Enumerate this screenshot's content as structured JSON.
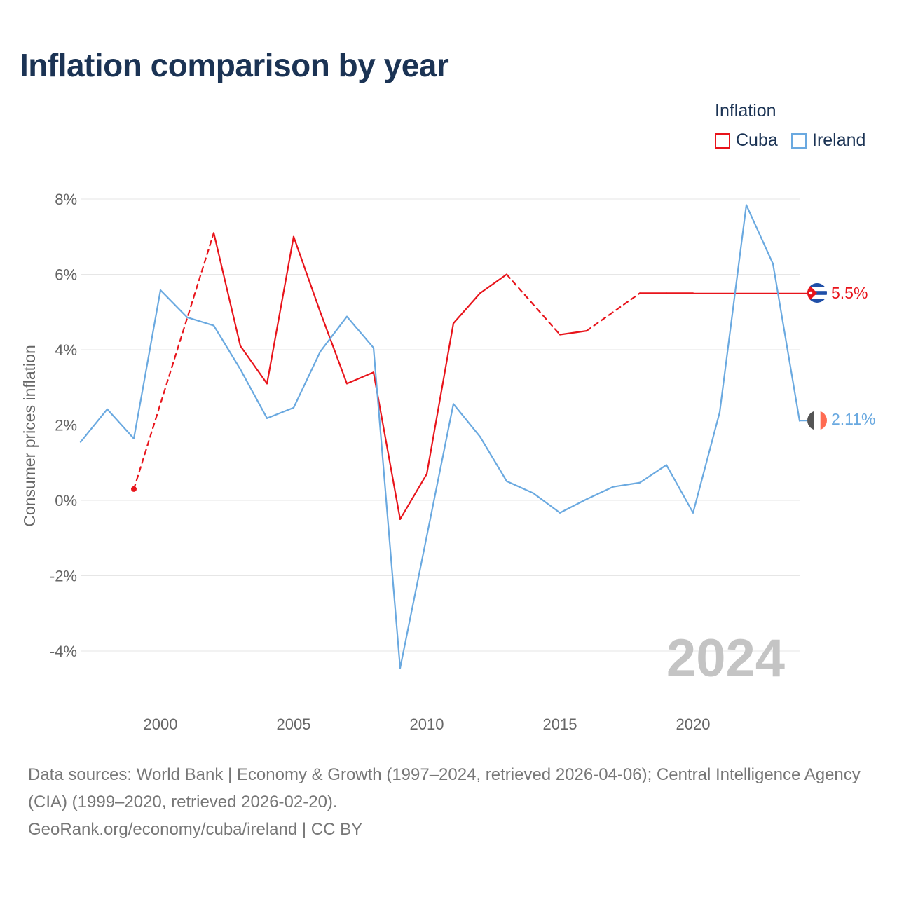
{
  "title": "Inflation comparison by year",
  "legend": {
    "title": "Inflation",
    "items": [
      {
        "label": "Cuba",
        "color": "#e8141b"
      },
      {
        "label": "Ireland",
        "color": "#6aa9e0"
      }
    ]
  },
  "year_watermark": "2024",
  "footer": {
    "sources": "Data sources: World Bank | Economy & Growth (1997–2024, retrieved 2026-04-06); Central Intelligence Agency (CIA) (1999–2020, retrieved 2026-02-20).",
    "attribution": "GeoRank.org/economy/cuba/ireland | CC BY"
  },
  "chart_data": {
    "type": "line",
    "title": "Inflation comparison by year",
    "xlabel": "",
    "ylabel": "Consumer prices inflation",
    "xlim": [
      1997,
      2024
    ],
    "ylim": [
      -5,
      8
    ],
    "yticks": [
      -4,
      -2,
      0,
      2,
      4,
      6,
      8
    ],
    "ytick_labels": [
      "-4%",
      "-2%",
      "0%",
      "2%",
      "4%",
      "6%",
      "8%"
    ],
    "xticks": [
      2000,
      2005,
      2010,
      2015,
      2020
    ],
    "xtick_labels": [
      "2000",
      "2005",
      "2010",
      "2015",
      "2020"
    ],
    "grid": true,
    "series": [
      {
        "name": "Cuba",
        "color": "#e8141b",
        "end_label": "5.5%",
        "x": [
          1999,
          2002,
          2003,
          2004,
          2005,
          2006,
          2007,
          2008,
          2009,
          2010,
          2011,
          2012,
          2013,
          2015,
          2016,
          2018,
          2019,
          2020
        ],
        "values": [
          0.3,
          7.1,
          4.1,
          3.1,
          7.0,
          5.0,
          3.1,
          3.4,
          -0.5,
          0.7,
          4.7,
          5.5,
          6.0,
          4.4,
          4.5,
          5.5,
          5.5,
          5.5
        ],
        "dashed_segments": [
          [
            1999,
            2002
          ],
          [
            2013,
            2015
          ],
          [
            2016,
            2018
          ]
        ],
        "extended_to": 2024
      },
      {
        "name": "Ireland",
        "color": "#6aa9e0",
        "end_label": "2.11%",
        "x": [
          1997,
          1998,
          1999,
          2000,
          2001,
          2002,
          2003,
          2004,
          2005,
          2006,
          2007,
          2008,
          2009,
          2010,
          2011,
          2012,
          2013,
          2014,
          2015,
          2016,
          2017,
          2018,
          2019,
          2020,
          2021,
          2022,
          2023,
          2024
        ],
        "values": [
          1.55,
          2.42,
          1.64,
          5.58,
          4.86,
          4.64,
          3.48,
          2.18,
          2.46,
          3.95,
          4.88,
          4.05,
          -4.45,
          -0.95,
          2.56,
          1.69,
          0.51,
          0.19,
          -0.33,
          0.03,
          0.36,
          0.47,
          0.94,
          -0.33,
          2.34,
          7.84,
          6.28,
          2.11
        ]
      }
    ]
  }
}
